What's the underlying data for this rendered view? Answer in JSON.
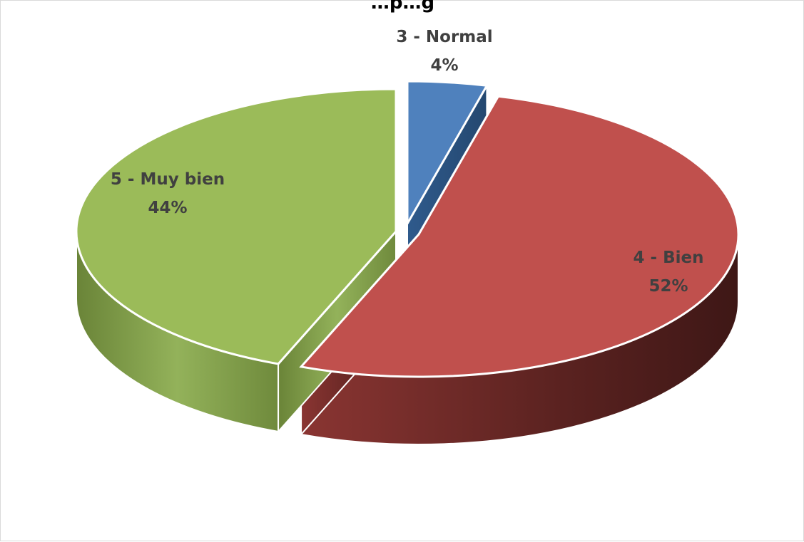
{
  "chart_data": {
    "type": "pie",
    "title": "…p…g",
    "three_d": true,
    "exploded": true,
    "slices": [
      {
        "label": "3 - Normal",
        "value": 4,
        "value_label": "4%",
        "color": "#4f81bd"
      },
      {
        "label": "4 - Bien",
        "value": 52,
        "value_label": "52%",
        "color": "#c0504d"
      },
      {
        "label": "5 - Muy bien",
        "value": 44,
        "value_label": "44%",
        "color": "#9bbb59"
      }
    ],
    "data_labels": "category-and-percent",
    "legend": "none"
  }
}
